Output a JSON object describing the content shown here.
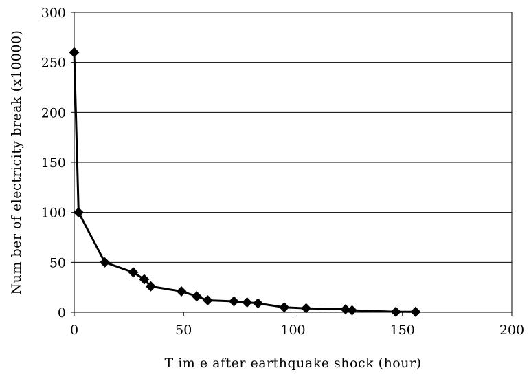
{
  "chart_data": {
    "type": "line",
    "title": "",
    "xlabel": "T im e after earthquake shock (hour)",
    "ylabel": "Num ber of electricity break (x10000)",
    "xlim": [
      0,
      200
    ],
    "ylim": [
      0,
      300
    ],
    "xticks": [
      "0",
      "50",
      "100",
      "150",
      "200"
    ],
    "yticks": [
      "0",
      "50",
      "100",
      "150",
      "200",
      "250",
      "300"
    ],
    "grid": "horizontal",
    "marker": "diamond",
    "line_color": "#000000",
    "series": [
      {
        "x": [
          0,
          2,
          14,
          27,
          32,
          35,
          49,
          56,
          61,
          73,
          79,
          84,
          96,
          106,
          124,
          127,
          147,
          156
        ],
        "y": [
          260,
          100,
          50,
          40,
          33,
          26,
          21,
          16,
          12,
          11,
          10,
          9,
          5,
          4,
          3,
          2,
          0.5,
          0.5
        ]
      }
    ]
  }
}
